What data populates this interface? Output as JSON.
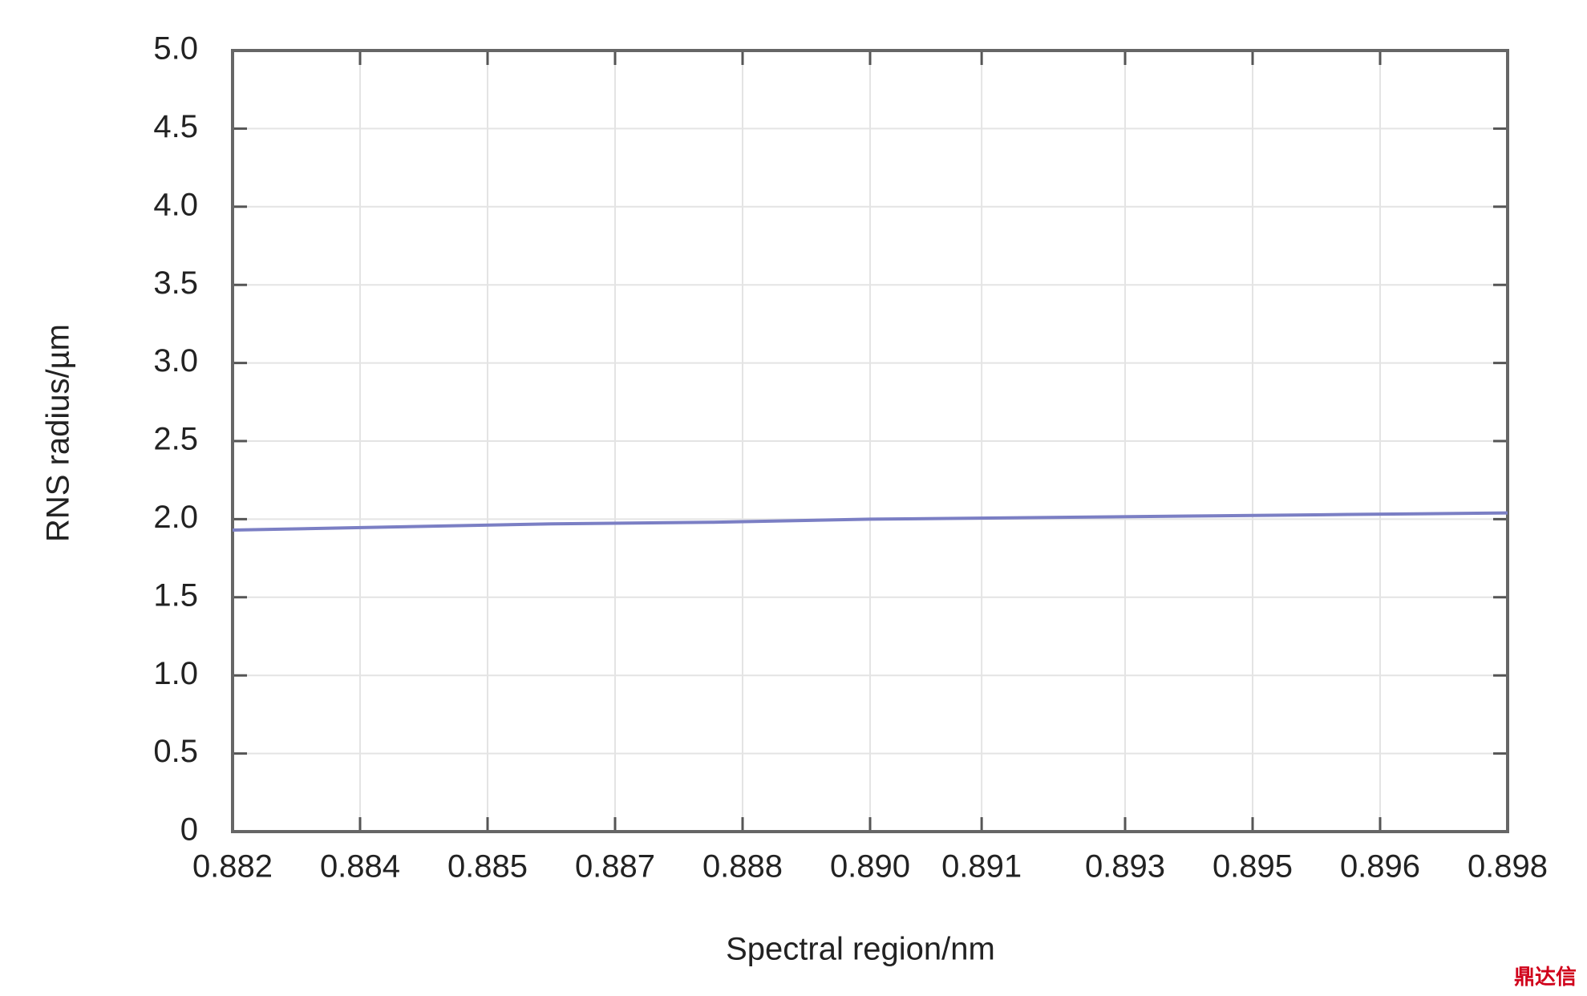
{
  "chart_data": {
    "type": "line",
    "x_label": "Spectral region/nm",
    "y_label": "RNS radius/µm",
    "watermark": "鼎达信",
    "xlim": [
      0.882,
      0.898
    ],
    "ylim": [
      0,
      5
    ],
    "xticks": [
      {
        "value": 0.882,
        "label": "0.882"
      },
      {
        "value": 0.8836,
        "label": "0.884"
      },
      {
        "value": 0.8852,
        "label": "0.885"
      },
      {
        "value": 0.8868,
        "label": "0.887"
      },
      {
        "value": 0.8884,
        "label": "0.888"
      },
      {
        "value": 0.89,
        "label": "0.890"
      },
      {
        "value": 0.8914,
        "label": "0.891"
      },
      {
        "value": 0.8932,
        "label": "0.893"
      },
      {
        "value": 0.8948,
        "label": "0.895"
      },
      {
        "value": 0.8964,
        "label": "0.896"
      },
      {
        "value": 0.898,
        "label": "0.898"
      }
    ],
    "yticks": [
      0,
      0.5,
      {
        "value": 1,
        "label": "1.0"
      },
      1.5,
      {
        "value": 2,
        "label": "2.0"
      },
      2.5,
      {
        "value": 3,
        "label": "3.0"
      },
      3.5,
      {
        "value": 4,
        "label": "4.0"
      },
      4.5,
      {
        "value": 5,
        "label": "5.0"
      }
    ],
    "grid": true,
    "x": [
      0.882,
      0.884,
      0.886,
      0.888,
      0.89,
      0.892,
      0.894,
      0.896,
      0.898
    ],
    "series": [
      {
        "color": "#7b7fc4",
        "values": [
          1.93,
          1.95,
          1.97,
          1.98,
          2.0,
          2.01,
          2.02,
          2.03,
          2.04
        ]
      }
    ]
  }
}
